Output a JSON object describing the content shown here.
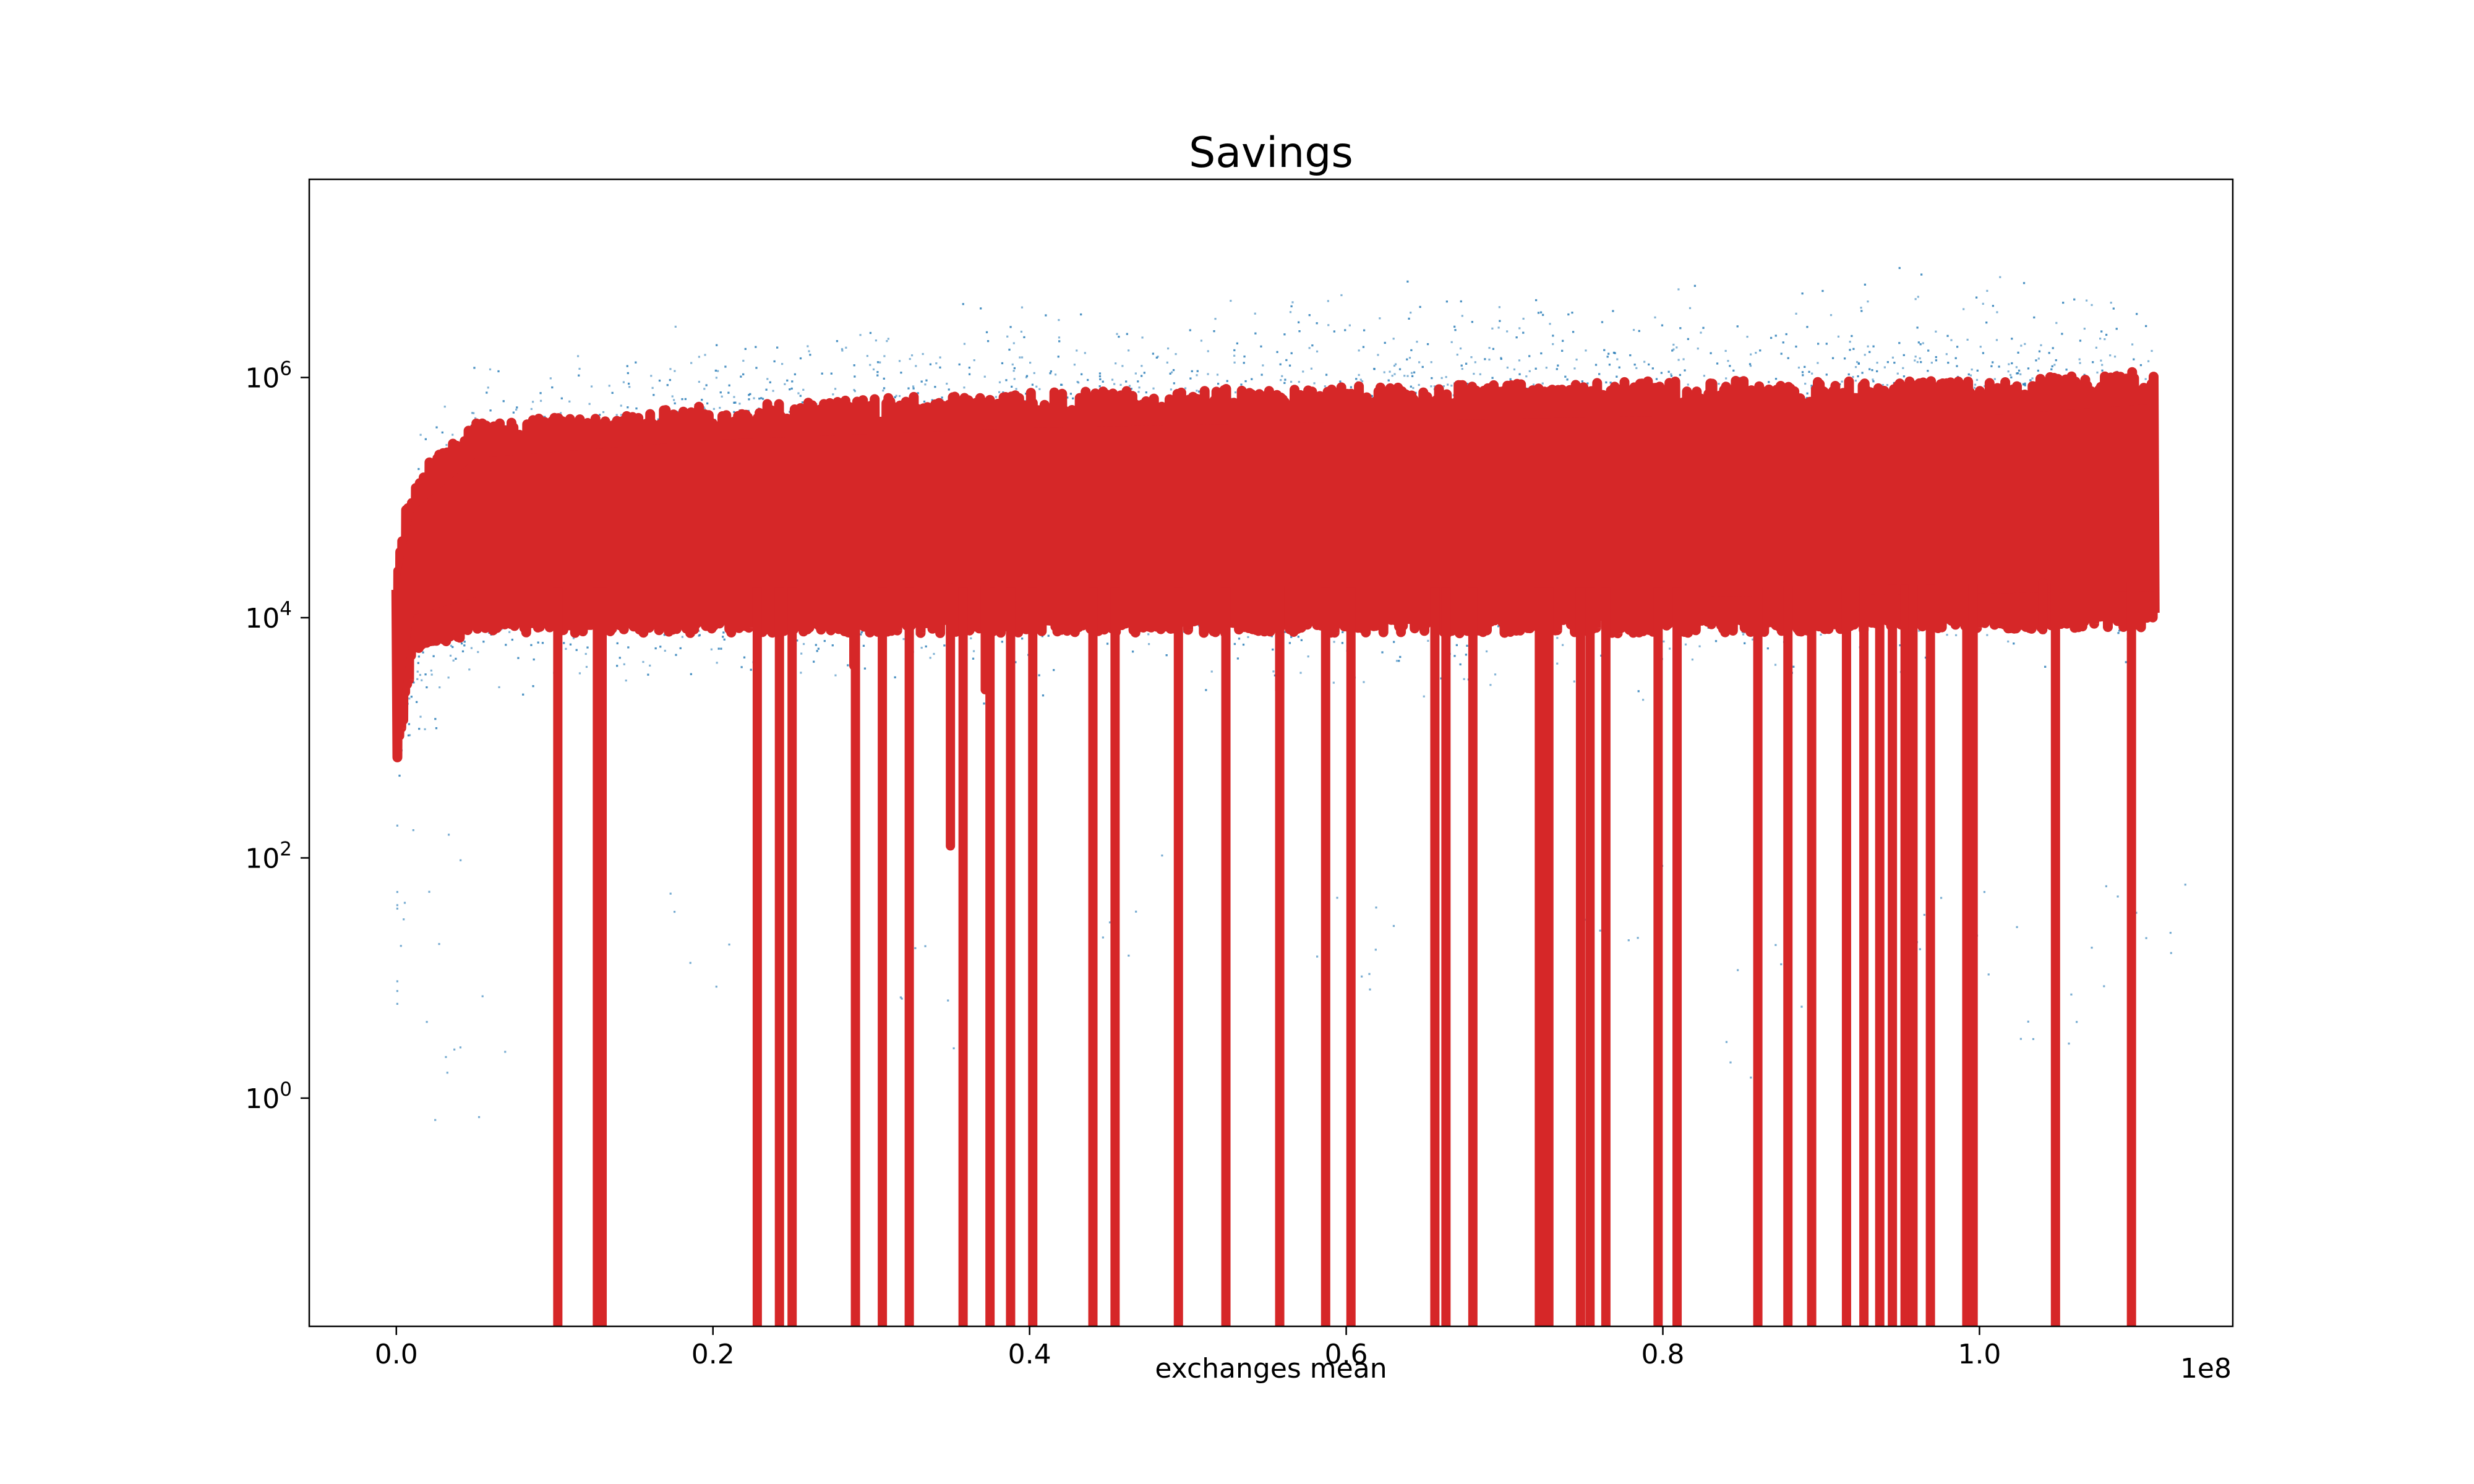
{
  "chart_data": {
    "type": "scatter",
    "title": "Savings",
    "xlabel": "exchanges mean",
    "ylabel": "",
    "x_offset_label": "1e8",
    "xlim": [
      -5500000,
      116000000
    ],
    "ylim_log10": [
      -1.9,
      7.65
    ],
    "yscale": "log",
    "grid": false,
    "legend": "none",
    "x_ticks": [
      {
        "value": 0,
        "label": "0.0"
      },
      {
        "value": 20000000,
        "label": "0.2"
      },
      {
        "value": 40000000,
        "label": "0.4"
      },
      {
        "value": 60000000,
        "label": "0.6"
      },
      {
        "value": 80000000,
        "label": "0.8"
      },
      {
        "value": 100000000,
        "label": "1.0"
      }
    ],
    "y_ticks": [
      {
        "exp": 6,
        "base": "10",
        "sup": "6"
      },
      {
        "exp": 4,
        "base": "10",
        "sup": "4"
      },
      {
        "exp": 2,
        "base": "10",
        "sup": "2"
      },
      {
        "exp": 0,
        "base": "10",
        "sup": "0"
      }
    ],
    "series": [
      {
        "color": "#1f77b4",
        "style": "scatter-cloud",
        "x_range": [
          0,
          111000000
        ],
        "upper_envelope_log10": [
          [
            0,
            4.6
          ],
          [
            500000,
            5.2
          ],
          [
            2000000,
            5.9
          ],
          [
            5000000,
            6.2
          ],
          [
            15000000,
            6.5
          ],
          [
            30000000,
            6.7
          ],
          [
            50000000,
            6.8
          ],
          [
            70000000,
            6.9
          ],
          [
            90000000,
            6.9
          ],
          [
            104000000,
            7.0
          ],
          [
            111000000,
            6.8
          ]
        ],
        "lower_envelope_log10": [
          [
            0,
            2.3
          ],
          [
            2000000,
            3.0
          ],
          [
            10000000,
            3.2
          ],
          [
            40000000,
            3.3
          ],
          [
            80000000,
            3.3
          ],
          [
            111000000,
            3.5
          ]
        ],
        "sparse_outliers_log10": [
          [
            0,
            1.2
          ],
          [
            1000000,
            1.8
          ],
          [
            4000000,
            0.4
          ],
          [
            20000000,
            1.4
          ],
          [
            33000000,
            0.9
          ],
          [
            47000000,
            1.6
          ],
          [
            61000000,
            1.1
          ],
          [
            77000000,
            1.9
          ],
          [
            86000000,
            0.7
          ],
          [
            98000000,
            1.5
          ],
          [
            105000000,
            1.0
          ],
          [
            110000000,
            1.7
          ]
        ]
      },
      {
        "color": "#d62728",
        "style": "thick-line",
        "x_range": [
          0,
          111000000
        ],
        "band_top_log10": [
          [
            0,
            4.3
          ],
          [
            1000000,
            5.0
          ],
          [
            5000000,
            5.45
          ],
          [
            20000000,
            5.6
          ],
          [
            40000000,
            5.7
          ],
          [
            60000000,
            5.75
          ],
          [
            80000000,
            5.8
          ],
          [
            100000000,
            5.8
          ],
          [
            111000000,
            5.9
          ]
        ],
        "band_bottom_log10": [
          [
            0,
            2.9
          ],
          [
            1000000,
            3.9
          ],
          [
            5000000,
            4.05
          ],
          [
            40000000,
            4.05
          ],
          [
            80000000,
            4.05
          ],
          [
            111000000,
            4.1
          ]
        ],
        "drops_to_zero_x": [
          10200000,
          12700000,
          13000000,
          22800000,
          24200000,
          25000000,
          29000000,
          30700000,
          32400000,
          35800000,
          37500000,
          38800000,
          40200000,
          44000000,
          45400000,
          49400000,
          52400000,
          55800000,
          58700000,
          60300000,
          65600000,
          66300000,
          68000000,
          72200000,
          72500000,
          72800000,
          74800000,
          75400000,
          76400000,
          79700000,
          80900000,
          86000000,
          87900000,
          89400000,
          91600000,
          92700000,
          93700000,
          94500000,
          95300000,
          95800000,
          96900000,
          99200000,
          99600000,
          104800000,
          109600000
        ],
        "deep_dips": [
          {
            "x": 35000000,
            "log10": 2.1
          },
          {
            "x": 37200000,
            "log10": 3.4
          },
          {
            "x": 55800000,
            "log10": 3.4
          },
          {
            "x": 28900000,
            "log10": 3.6
          },
          {
            "x": 104000000,
            "log10": 3.9
          }
        ]
      }
    ]
  }
}
